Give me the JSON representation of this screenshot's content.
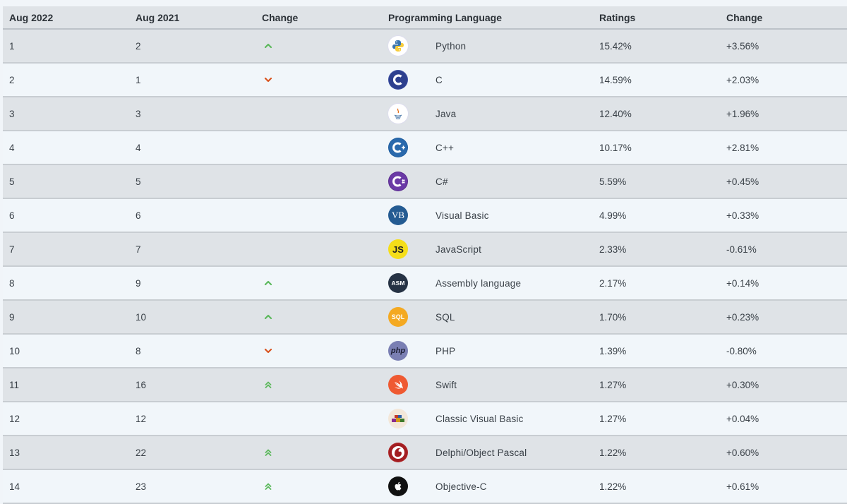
{
  "table": {
    "headers": [
      "Aug 2022",
      "Aug 2021",
      "Change",
      "Programming Language",
      "Ratings",
      "Change"
    ],
    "rows": [
      {
        "aug2022": "1",
        "aug2021": "2",
        "trend": "up",
        "icon": "python-logo-icon",
        "language": "Python",
        "rating": "15.42%",
        "change": "+3.56%"
      },
      {
        "aug2022": "2",
        "aug2021": "1",
        "trend": "down",
        "icon": "c-logo-icon",
        "language": "C",
        "rating": "14.59%",
        "change": "+2.03%"
      },
      {
        "aug2022": "3",
        "aug2021": "3",
        "trend": "none",
        "icon": "java-logo-icon",
        "language": "Java",
        "rating": "12.40%",
        "change": "+1.96%"
      },
      {
        "aug2022": "4",
        "aug2021": "4",
        "trend": "none",
        "icon": "cpp-logo-icon",
        "language": "C++",
        "rating": "10.17%",
        "change": "+2.81%"
      },
      {
        "aug2022": "5",
        "aug2021": "5",
        "trend": "none",
        "icon": "csharp-logo-icon",
        "language": "C#",
        "rating": "5.59%",
        "change": "+0.45%"
      },
      {
        "aug2022": "6",
        "aug2021": "6",
        "trend": "none",
        "icon": "visual-basic-logo-icon",
        "language": "Visual Basic",
        "rating": "4.99%",
        "change": "+0.33%"
      },
      {
        "aug2022": "7",
        "aug2021": "7",
        "trend": "none",
        "icon": "javascript-logo-icon",
        "language": "JavaScript",
        "rating": "2.33%",
        "change": "-0.61%"
      },
      {
        "aug2022": "8",
        "aug2021": "9",
        "trend": "up",
        "icon": "assembly-logo-icon",
        "language": "Assembly language",
        "rating": "2.17%",
        "change": "+0.14%"
      },
      {
        "aug2022": "9",
        "aug2021": "10",
        "trend": "up",
        "icon": "sql-logo-icon",
        "language": "SQL",
        "rating": "1.70%",
        "change": "+0.23%"
      },
      {
        "aug2022": "10",
        "aug2021": "8",
        "trend": "down",
        "icon": "php-logo-icon",
        "language": "PHP",
        "rating": "1.39%",
        "change": "-0.80%"
      },
      {
        "aug2022": "11",
        "aug2021": "16",
        "trend": "double-up",
        "icon": "swift-logo-icon",
        "language": "Swift",
        "rating": "1.27%",
        "change": "+0.30%"
      },
      {
        "aug2022": "12",
        "aug2021": "12",
        "trend": "none",
        "icon": "classic-visual-basic-logo-icon",
        "language": "Classic Visual Basic",
        "rating": "1.27%",
        "change": "+0.04%"
      },
      {
        "aug2022": "13",
        "aug2021": "22",
        "trend": "double-up",
        "icon": "delphi-logo-icon",
        "language": "Delphi/Object Pascal",
        "rating": "1.22%",
        "change": "+0.60%"
      },
      {
        "aug2022": "14",
        "aug2021": "23",
        "trend": "double-up",
        "icon": "objective-c-logo-icon",
        "language": "Objective-C",
        "rating": "1.22%",
        "change": "+0.61%"
      }
    ]
  },
  "icon_text": {
    "visual-basic-logo-icon": "VB",
    "javascript-logo-icon": "JS",
    "assembly-logo-icon": "ASM",
    "sql-logo-icon": "SQL",
    "php-logo-icon": "php"
  },
  "colors": {
    "up_arrow": "#5cb85c",
    "down_arrow": "#d9531e",
    "header_bg": "#dfe3e7",
    "row_alt_bg": "#f1f6fa"
  }
}
